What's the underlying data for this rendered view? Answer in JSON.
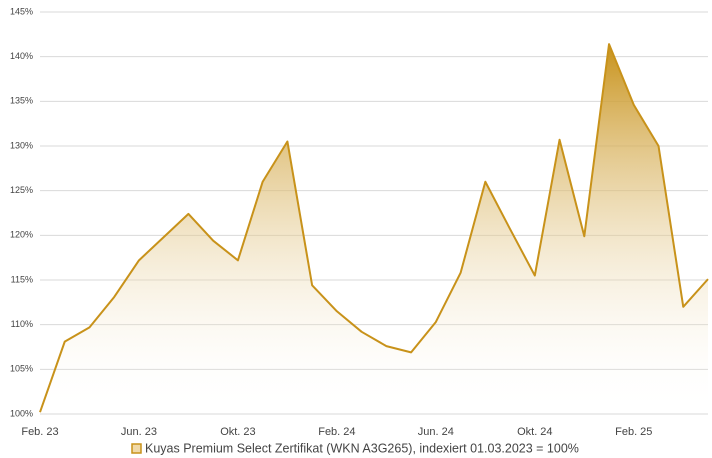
{
  "chart_data": {
    "type": "area",
    "categories": [
      "Feb. 23",
      null,
      null,
      null,
      "Jun. 23",
      null,
      null,
      null,
      "Okt. 23",
      null,
      null,
      null,
      "Feb. 24",
      null,
      null,
      null,
      "Jun. 24",
      null,
      null,
      null,
      "Okt. 24",
      null,
      null,
      null,
      "Feb. 25",
      null,
      null,
      null
    ],
    "series": [
      {
        "name": "Kuyas Premium Select Zertifikat (WKN A3G265),  indexiert 01.03.2023 = 100%",
        "color": "#c8921a",
        "values": [
          100.2,
          108.1,
          109.7,
          113.1,
          117.2,
          119.8,
          122.4,
          119.4,
          117.2,
          126.0,
          130.5,
          114.4,
          111.5,
          109.2,
          107.6,
          106.9,
          110.3,
          115.8,
          126.0,
          120.7,
          115.5,
          130.7,
          119.9,
          141.4,
          134.6,
          130.0,
          112.0,
          115.1
        ]
      }
    ],
    "ylim": [
      100,
      145
    ],
    "yticks": [
      {
        "value": 100,
        "label": "100%"
      },
      {
        "value": 105,
        "label": "105%"
      },
      {
        "value": 110,
        "label": "110%"
      },
      {
        "value": 115,
        "label": "115%"
      },
      {
        "value": 120,
        "label": "120%"
      },
      {
        "value": 125,
        "label": "125%"
      },
      {
        "value": 130,
        "label": "130%"
      },
      {
        "value": 135,
        "label": "135%"
      },
      {
        "value": 140,
        "label": "140%"
      },
      {
        "value": 145,
        "label": "145%"
      }
    ],
    "grid": true
  }
}
